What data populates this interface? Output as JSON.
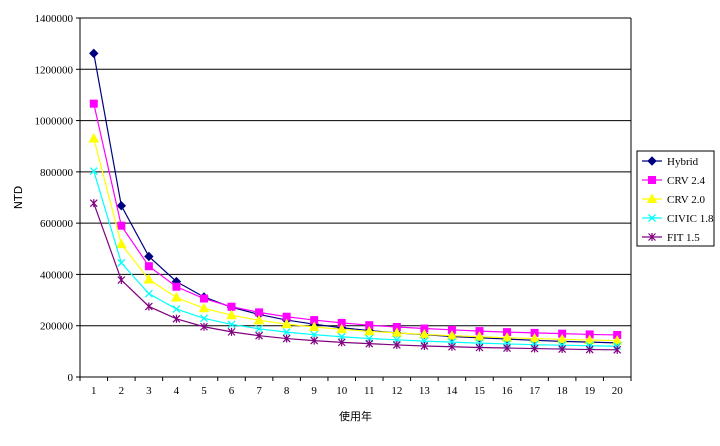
{
  "chart_data": {
    "type": "line",
    "xlabel": "使用年",
    "ylabel": "NTD",
    "ylim": [
      0,
      1400000
    ],
    "yticks": [
      0,
      200000,
      400000,
      600000,
      800000,
      1000000,
      1200000,
      1400000
    ],
    "x": [
      1,
      2,
      3,
      4,
      5,
      6,
      7,
      8,
      9,
      10,
      11,
      12,
      13,
      14,
      15,
      16,
      17,
      18,
      19,
      20
    ],
    "grid": "horizontal",
    "legend_position": "right",
    "series": [
      {
        "name": "Hybrid",
        "color": "#000080",
        "marker": "diamond",
        "values": [
          1262000,
          668000,
          470000,
          372000,
          312000,
          272000,
          244000,
          222000,
          206000,
          192000,
          181000,
          172000,
          165000,
          158000,
          153000,
          148000,
          143000,
          139000,
          136000,
          133000
        ]
      },
      {
        "name": "CRV 2.4",
        "color": "#ff00ff",
        "marker": "square",
        "values": [
          1066000,
          590000,
          432000,
          352000,
          306000,
          274000,
          252000,
          235000,
          222000,
          211000,
          202000,
          195000,
          189000,
          184000,
          179000,
          175000,
          172000,
          169000,
          166000,
          164000
        ]
      },
      {
        "name": "CRV 2.0",
        "color": "#ffff00",
        "marker": "triangle",
        "values": [
          930000,
          518000,
          380000,
          310000,
          268000,
          241000,
          221000,
          206000,
          195000,
          186000,
          178000,
          172000,
          166000,
          161000,
          157000,
          153000,
          150000,
          147000,
          144000,
          142000
        ]
      },
      {
        "name": "CIVIC 1.8",
        "color": "#00ffff",
        "marker": "x",
        "values": [
          803000,
          445000,
          325000,
          265000,
          229000,
          205000,
          188000,
          175000,
          165000,
          157000,
          150000,
          145000,
          140000,
          136000,
          132000,
          129000,
          126000,
          124000,
          122000,
          120000
        ]
      },
      {
        "name": "FIT 1.5",
        "color": "#800080",
        "marker": "star",
        "values": [
          678000,
          378000,
          275000,
          227000,
          196000,
          176000,
          161000,
          150000,
          142000,
          135000,
          130000,
          125000,
          121000,
          118000,
          115000,
          113000,
          111000,
          109000,
          107000,
          106000
        ]
      }
    ]
  }
}
